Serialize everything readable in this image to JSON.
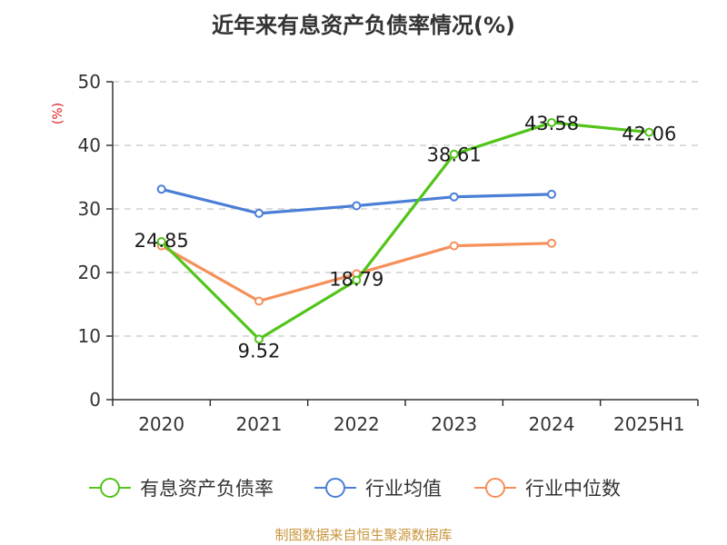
{
  "chart_data": {
    "type": "line",
    "title": "近年来有息资产负债率情况(%)",
    "y_unit": "(%)",
    "categories": [
      "2020",
      "2021",
      "2022",
      "2023",
      "2024",
      "2025H1"
    ],
    "ylim": [
      0,
      50
    ],
    "yticks": [
      "0",
      "10",
      "20",
      "30",
      "40",
      "50"
    ],
    "grid": true,
    "legend_position": "bottom",
    "series": [
      {
        "name": "有息资产负债率",
        "color": "#52c41a",
        "values": [
          24.85,
          9.52,
          18.79,
          38.61,
          43.58,
          42.06
        ],
        "labels": [
          "24.85",
          "9.52",
          "18.79",
          "38.61",
          "43.58",
          "42.06"
        ]
      },
      {
        "name": "行业均值",
        "color": "#4a7fd6",
        "values": [
          33.1,
          29.3,
          30.5,
          31.9,
          32.3,
          null
        ]
      },
      {
        "name": "行业中位数",
        "color": "#f5905a",
        "values": [
          24.2,
          15.5,
          19.8,
          24.2,
          24.6,
          null
        ]
      }
    ],
    "source": "制图数据来自恒生聚源数据库"
  }
}
